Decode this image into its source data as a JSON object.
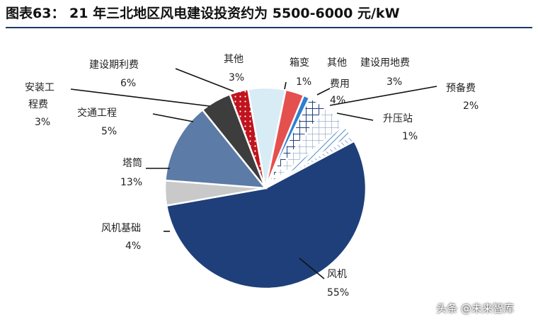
{
  "chart_data": {
    "type": "pie",
    "title": "图表63： 21 年三北地区风电建设投资约为 5500-6000 元/kW",
    "slices": [
      {
        "label": "风机",
        "value": 55,
        "color": "#1f3f7a",
        "pattern": "solid"
      },
      {
        "label": "风机基础",
        "value": 4,
        "color": "#c9c9c9",
        "pattern": "solid"
      },
      {
        "label": "塔筒",
        "value": 13,
        "color": "#5c7ba6",
        "pattern": "solid"
      },
      {
        "label": "交通工程",
        "value": 5,
        "color": "#3d3d3d",
        "pattern": "solid"
      },
      {
        "label": "安装工程费",
        "value": 3,
        "color": "#c0141e",
        "pattern": "dots"
      },
      {
        "label": "建设期利费",
        "value": 6,
        "color": "#d8ecf5",
        "pattern": "solid"
      },
      {
        "label": "其他",
        "value": 3,
        "color": "#e4504e",
        "pattern": "solid"
      },
      {
        "label": "箱变",
        "value": 1,
        "color": "#2f7fd0",
        "pattern": "solid"
      },
      {
        "label": "其他建设用地费",
        "value": 3,
        "color": "#1f3f7a",
        "pattern": "grid"
      },
      {
        "label": "费用",
        "value": 4,
        "color": "#5c7ba6",
        "pattern": "grid"
      },
      {
        "label": "预备费",
        "value": 2,
        "color": "#7fa8d8",
        "pattern": "hatch"
      },
      {
        "label": "升压站",
        "value": 1,
        "color": "#9fb9d8",
        "pattern": "hatch"
      }
    ]
  },
  "labels": {
    "fengji": {
      "name": "风机",
      "pct": "55%"
    },
    "fengji_jichu": {
      "name": "风机基础",
      "pct": "4%"
    },
    "tatong": {
      "name": "塔筒",
      "pct": "13%"
    },
    "jiaotong": {
      "name": "交通工程",
      "pct": "5%"
    },
    "anzhuang": {
      "name1": "安装工",
      "name2": "程费",
      "pct": "3%"
    },
    "jianshe": {
      "name": "建设期利费",
      "pct": "6%"
    },
    "qita": {
      "name": "其他",
      "pct": "3%"
    },
    "xiangbian": {
      "name": "箱变",
      "pct": "1%"
    },
    "qita_jianshe": {
      "name1": "其他",
      "name2": "建设用地费",
      "pct": "3%"
    },
    "feiyong": {
      "name": "费用",
      "pct": "4%"
    },
    "yubei": {
      "name": "预备费",
      "pct": "2%"
    },
    "shengya": {
      "name": "升压站",
      "pct": "1%"
    }
  },
  "watermark": "头条 @未来智库"
}
